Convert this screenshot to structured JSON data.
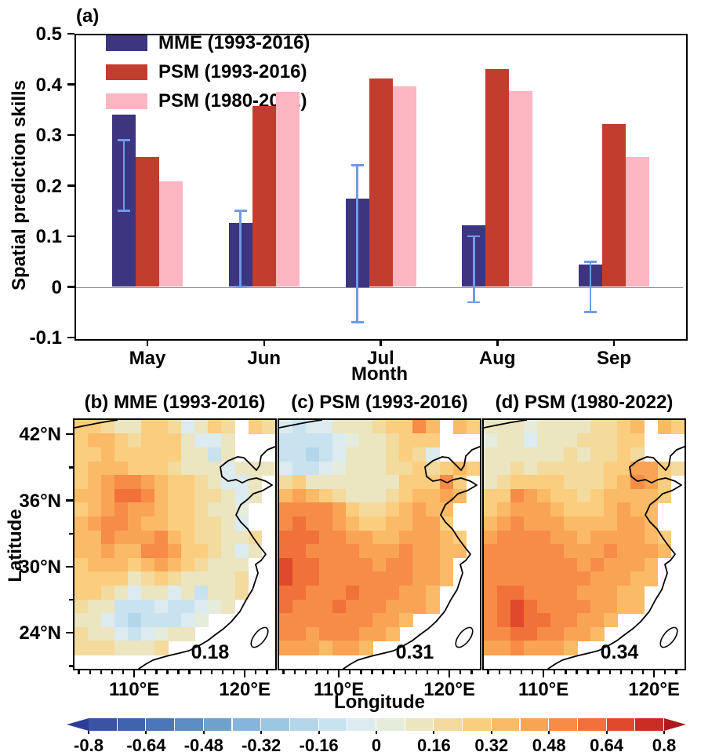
{
  "chart_data": {
    "type": "composite",
    "panel_a": {
      "type": "bar",
      "label": "(a)",
      "ylabel": "Spatial prediction skills",
      "xlabel": "Month",
      "ylim": [
        -0.1,
        0.5
      ],
      "ytick_labels": [
        "0.5",
        "0.4",
        "0.3",
        "0.2",
        "0.1",
        "0",
        "-0.1"
      ],
      "ytick_values": [
        0.5,
        0.4,
        0.3,
        0.2,
        0.1,
        0,
        -0.1
      ],
      "categories": [
        "May",
        "Jun",
        "Jul",
        "Aug",
        "Sep"
      ],
      "series": [
        {
          "name": "MME (1993-2016)",
          "color": "#3d3580",
          "values": [
            0.34,
            0.127,
            0.175,
            0.122,
            0.044
          ]
        },
        {
          "name": "PSM (1993-2016)",
          "color": "#c13d2e",
          "values": [
            0.256,
            0.357,
            0.412,
            0.43,
            0.322
          ]
        },
        {
          "name": "PSM (1980-2022)",
          "color": "#fbb6c1",
          "values": [
            0.208,
            0.385,
            0.396,
            0.387,
            0.256
          ]
        }
      ],
      "error_bars": {
        "on_series": "MME (1993-2016)",
        "color": "#6e9be9",
        "low": [
          0.15,
          0.0,
          -0.07,
          -0.03,
          -0.05
        ],
        "high": [
          0.29,
          0.15,
          0.24,
          0.1,
          0.05
        ]
      },
      "zero_gridline": true,
      "legend_position": "top-left"
    },
    "maps": {
      "type": "heatmap",
      "shared": {
        "ylabel": "Latitude",
        "xlabel": "Longitude",
        "lat_tick_labels": [
          "42°N",
          "36°N",
          "30°N",
          "24°N"
        ],
        "lat_tick_values": [
          42,
          36,
          30,
          24
        ],
        "lon_tick_labels": [
          "110°E",
          "120°E"
        ],
        "lon_tick_values": [
          110,
          120
        ],
        "lat_range": [
          20.7,
          43.3
        ],
        "lon_range": [
          104.6,
          122.7
        ],
        "note": "grid values are correlation x 100, row order north to south; empty token = ocean / no data"
      },
      "panels": [
        {
          "id": "b",
          "title": "(b) MME (1993-2016)",
          "score": "0.18",
          "grid": [
            "30,30,22,14,14,26,30,20,-8,10,28,18,,30,22",
            "28,32,35,30,22,25,30,25,12,-8,-8,15,,,",
            "25,30,35,30,25,28,30,25,15,10,-10,12,,,",
            "28,35,38,35,30,30,28,22,15,12,8,-8,10,15,12",
            "30,35,42,50,55,45,35,28,25,20,15,-5,-8,10,",
            "32,38,45,58,60,50,38,30,28,22,18,10,-5,8,",
            "30,38,42,48,45,40,35,30,25,20,15,10,5,,",
            "35,40,50,52,42,38,35,30,25,22,18,12,-5,,",
            "35,38,48,45,40,45,50,38,28,22,18,15,8,20,",
            "32,35,40,38,35,48,50,40,30,25,20,15,-8,10,",
            "30,32,35,32,30,38,40,35,28,22,15,12,10,,",
            "28,30,30,25,15,20,25,20,15,12,10,15,18,,",
            "25,28,22,12,-8,8,10,-8,8,-10,8,12,20,,",
            "20,15,10,-10,-15,-12,-8,-10,-12,-8,5,10,,,",
            "15,12,-8,-12,-18,-15,-10,-12,-8,5,,,,,",
            "18,15,10,-8,-10,-8,5,10,12,,,,,,",
            "20,22,18,15,12,15,18,,,,,,,,",
            ",,,,,,,,,,,,,,"
          ]
        },
        {
          "id": "c",
          "title": "(c) PSM (1993-2016)",
          "score": "0.31",
          "grid": [
            "-8,-10,-8,-5,8,10,15,22,28,30,50,38,,35,28",
            "-12,-15,-12,-10,-8,5,10,15,22,28,30,25,,,",
            "-10,-15,-18,-12,-8,8,12,15,20,25,20,-5,,,",
            "-8,-10,-12,-8,5,10,15,12,18,22,25,18,30,35,25",
            "20,25,15,8,10,12,15,10,15,25,30,28,50,30,",
            "35,40,38,30,22,15,12,15,22,30,35,32,40,35,",
            "50,55,52,48,40,30,20,18,28,35,40,38,35,,",
            "55,58,55,50,45,38,30,25,32,38,42,40,30,,",
            "58,60,58,52,48,45,40,35,38,42,45,42,35,30,",
            "62,58,55,52,50,48,45,42,45,48,45,40,38,32,",
            "70,62,58,55,52,50,48,45,48,50,45,42,35,,",
            "65,60,58,55,52,55,50,48,50,48,45,40,38,,",
            "60,58,55,52,55,58,52,50,48,45,42,38,,,",
            "58,55,52,55,58,55,52,48,45,42,40,35,,,",
            "55,52,50,52,55,52,50,45,42,38,,,,,",
            "50,48,45,48,50,48,45,42,38,,,,,,",
            "45,42,40,38,42,40,38,,,,,,,,",
            ",,,,,,,,,,,,,,"
          ]
        },
        {
          "id": "d",
          "title": "(d) PSM (1980-2022)",
          "score": "0.34",
          "grid": [
            "8,10,8,5,8,10,12,15,18,20,28,32,,35,28",
            "5,8,10,-5,8,12,15,18,20,22,28,30,,,",
            "8,10,12,8,10,15,18,15,18,22,25,20,,,",
            "12,15,18,15,18,20,22,18,20,25,30,45,40,30,22",
            "15,20,25,30,28,25,22,20,22,28,35,48,42,28,",
            "25,30,50,45,38,30,25,22,25,32,38,35,38,30,",
            "30,38,45,42,40,35,30,28,30,35,40,38,35,,",
            "38,45,48,45,42,40,35,32,35,38,42,40,32,,",
            "45,50,52,50,48,45,42,38,40,42,45,42,38,30,",
            "50,52,55,52,50,48,45,42,45,48,45,42,40,32,",
            "52,55,52,50,52,50,48,45,48,45,42,40,35,,",
            "50,52,55,52,50,52,50,48,45,42,40,38,35,,",
            "52,58,60,55,52,50,48,45,42,40,38,35,,,",
            "55,62,65,60,55,52,50,48,45,42,38,32,,,",
            "52,60,68,62,58,52,48,45,40,38,,,,,",
            "48,55,60,58,52,48,45,40,38,,,,,,",
            "42,45,48,45,42,40,38,,,,,,,,",
            ",,,,,,,,,,,,,,"
          ]
        }
      ]
    },
    "colorbar": {
      "range": [
        -0.8,
        0.8
      ],
      "tick_labels": [
        "-0.8",
        "-0.64",
        "-0.48",
        "-0.32",
        "-0.16",
        "0",
        "0.16",
        "0.32",
        "0.48",
        "0.64",
        "0.8"
      ],
      "segment_colors": [
        "#3a53a4",
        "#3f62ad",
        "#4a77b9",
        "#5b8cc4",
        "#6fa1cf",
        "#85b5da",
        "#9cc7e3",
        "#b3d6ea",
        "#c9e2ef",
        "#dcebf0",
        "#e5ecdc",
        "#ebe5c0",
        "#f3da9d",
        "#fbcd7e",
        "#fbba66",
        "#f9a455",
        "#f68c47",
        "#f1713a",
        "#e04a2c",
        "#cc2d23"
      ],
      "left_arrow_color": "#2e3f99",
      "right_arrow_color": "#b01820"
    }
  }
}
